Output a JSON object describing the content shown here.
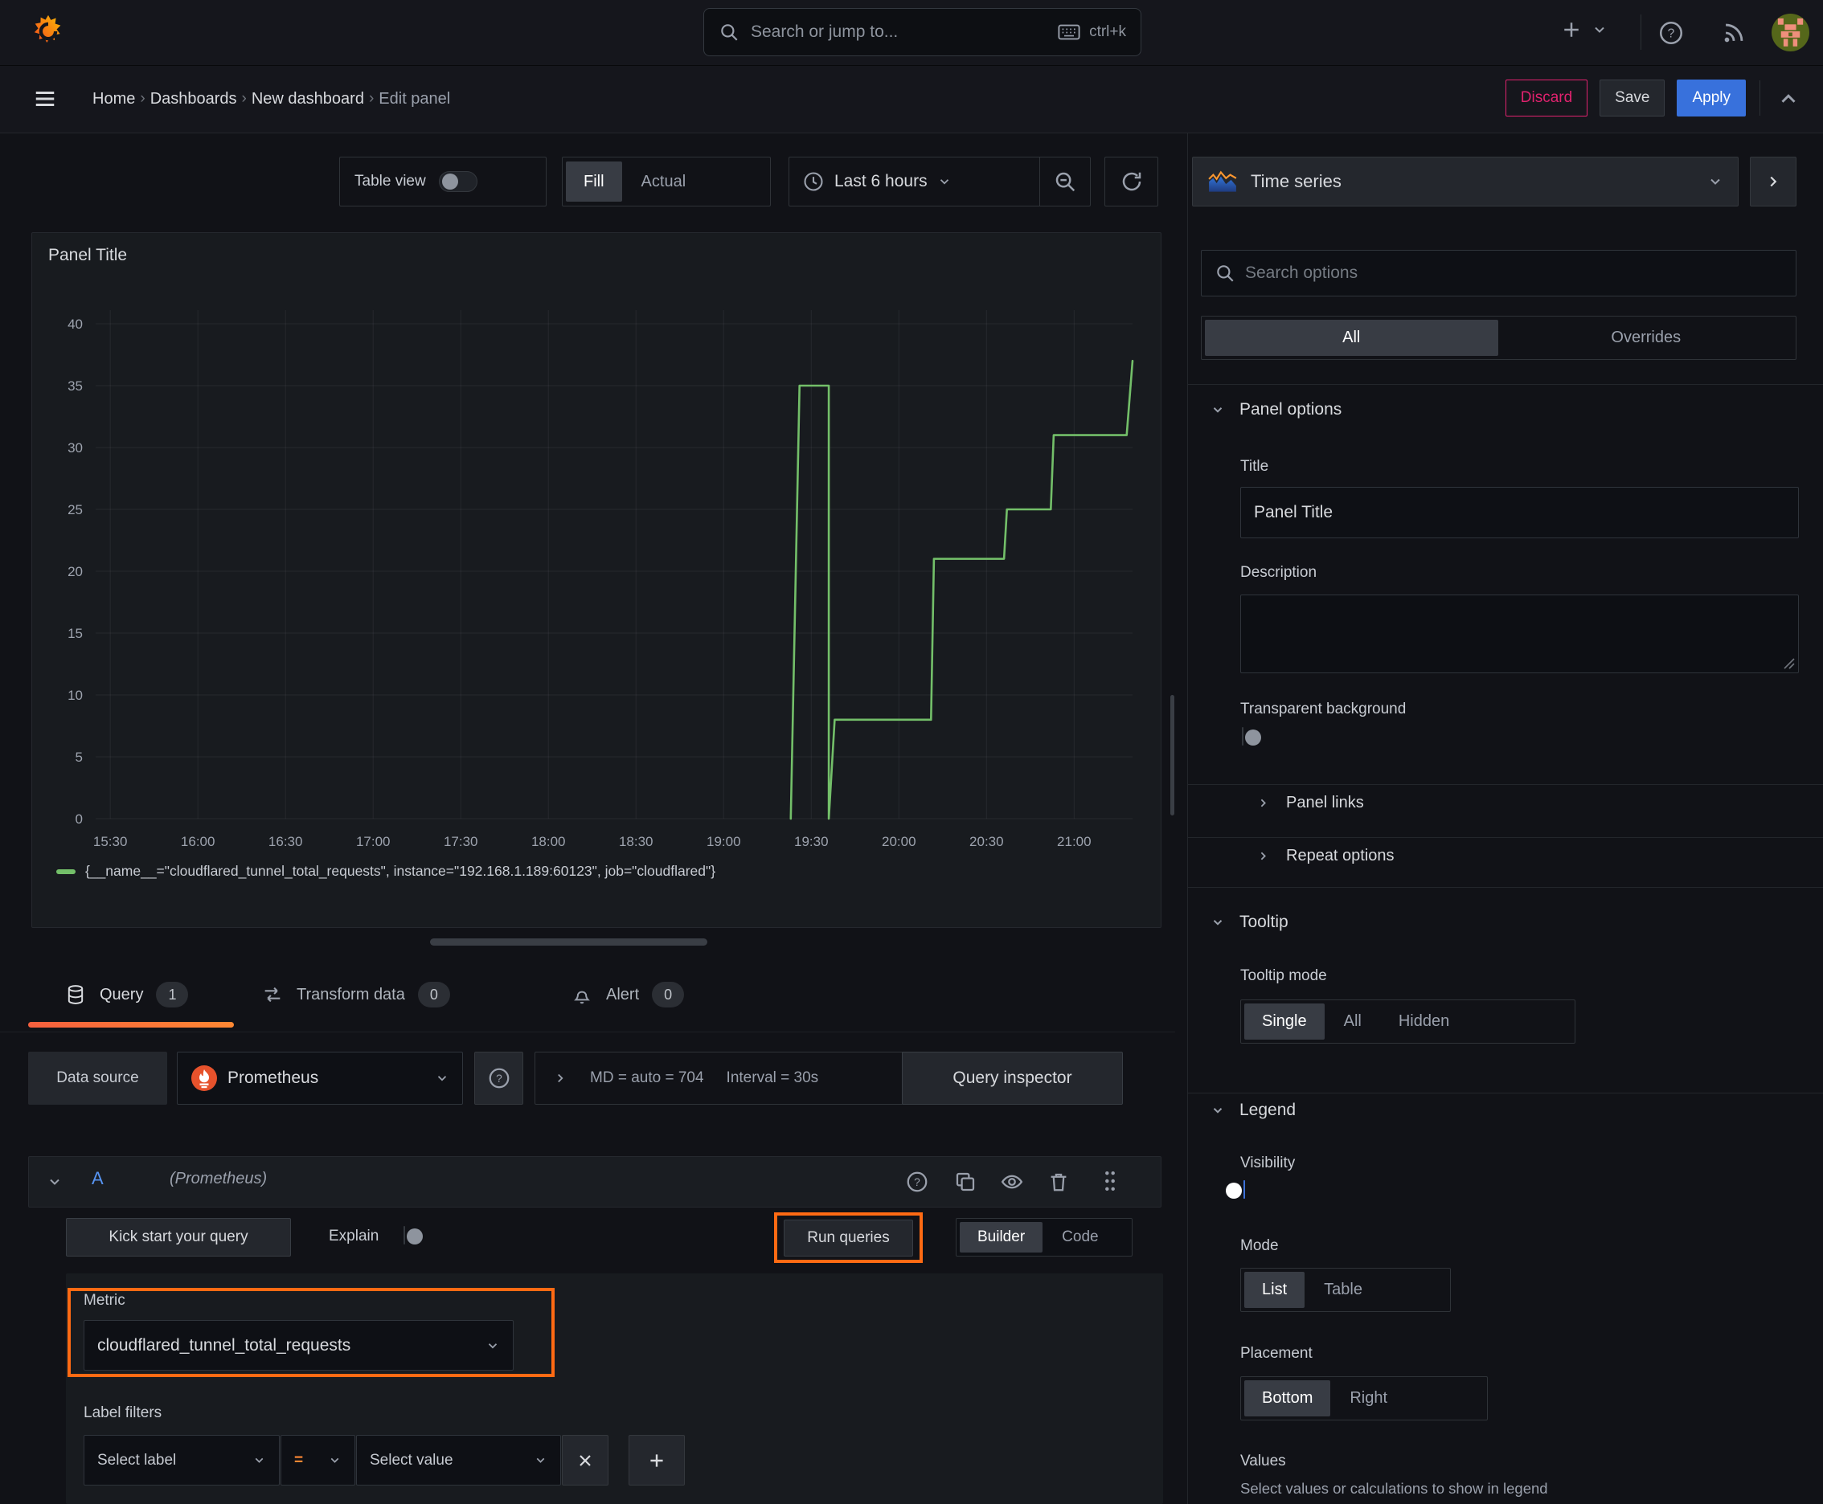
{
  "topbar": {
    "search_placeholder": "Search or jump to...",
    "search_shortcut": "ctrl+k"
  },
  "breadcrumbs": {
    "items": [
      "Home",
      "Dashboards",
      "New dashboard",
      "Edit panel"
    ]
  },
  "actions": {
    "discard": "Discard",
    "save": "Save",
    "apply": "Apply"
  },
  "toolbar": {
    "table_view": "Table view",
    "fill": "Fill",
    "actual": "Actual",
    "time_range": "Last 6 hours"
  },
  "viz_picker": {
    "label": "Time series"
  },
  "panel": {
    "title": "Panel Title"
  },
  "chart_data": {
    "type": "line",
    "title": "Panel Title",
    "ylim": [
      0,
      40
    ],
    "y_ticks": [
      0,
      5,
      10,
      15,
      20,
      25,
      30,
      35,
      40
    ],
    "x_ticks": [
      "15:30",
      "16:00",
      "16:30",
      "17:00",
      "17:30",
      "18:00",
      "18:30",
      "19:00",
      "19:30",
      "20:00",
      "20:30",
      "21:00"
    ],
    "x_domain": [
      "15:25",
      "21:20"
    ],
    "grid": true,
    "legend_position": "bottom",
    "series": [
      {
        "name": "{__name__=\"cloudflared_tunnel_total_requests\", instance=\"192.168.1.189:60123\", job=\"cloudflared\"}",
        "color": "#73bf69",
        "points": [
          [
            "19:23",
            0
          ],
          [
            "19:26",
            35
          ],
          [
            "19:36",
            35
          ],
          [
            "19:36",
            0
          ],
          [
            "19:38",
            8
          ],
          [
            "20:11",
            8
          ],
          [
            "20:12",
            21
          ],
          [
            "20:36",
            21
          ],
          [
            "20:37",
            25
          ],
          [
            "20:52",
            25
          ],
          [
            "20:53",
            31
          ],
          [
            "21:18",
            31
          ],
          [
            "21:20",
            37
          ]
        ]
      }
    ]
  },
  "tabs": {
    "query": {
      "label": "Query",
      "count": "1"
    },
    "transform": {
      "label": "Transform data",
      "count": "0"
    },
    "alert": {
      "label": "Alert",
      "count": "0"
    }
  },
  "query_editor": {
    "datasource_label": "Data source",
    "datasource_name": "Prometheus",
    "stats_md": "MD = auto = 704",
    "stats_interval": "Interval = 30s",
    "query_inspector": "Query inspector",
    "ref_id": "A",
    "datasource_hint": "(Prometheus)",
    "kick_start": "Kick start your query",
    "explain": "Explain",
    "run_queries": "Run queries",
    "builder": "Builder",
    "code": "Code",
    "metric_label": "Metric",
    "metric_value": "cloudflared_tunnel_total_requests",
    "label_filters": "Label filters",
    "select_label": "Select label",
    "operator": "=",
    "select_value": "Select value"
  },
  "sidebar": {
    "search_placeholder": "Search options",
    "filter_tabs": [
      "All",
      "Overrides"
    ],
    "panel_options": {
      "header": "Panel options",
      "title_label": "Title",
      "title_value": "Panel Title",
      "description_label": "Description",
      "transparent_label": "Transparent background"
    },
    "collapsed": {
      "panel_links": "Panel links",
      "repeat_options": "Repeat options"
    },
    "tooltip": {
      "header": "Tooltip",
      "mode_label": "Tooltip mode",
      "modes": [
        "Single",
        "All",
        "Hidden"
      ],
      "selected_mode": "Single"
    },
    "legend": {
      "header": "Legend",
      "visibility_label": "Visibility",
      "mode_label": "Mode",
      "modes": [
        "List",
        "Table"
      ],
      "selected_mode": "List",
      "placement_label": "Placement",
      "placements": [
        "Bottom",
        "Right"
      ],
      "selected_placement": "Bottom",
      "values_label": "Values",
      "values_help": "Select values or calculations to show in legend"
    }
  },
  "colors": {
    "accent_orange": "#ff6a13",
    "tab_gradient_from": "#f55f3e",
    "tab_gradient_to": "#ff8833",
    "series_green": "#73bf69",
    "apply_blue": "#3871dc",
    "discard_pink": "#e0226e",
    "ref_id_blue": "#5794f2",
    "prometheus_orange": "#e6522c"
  }
}
